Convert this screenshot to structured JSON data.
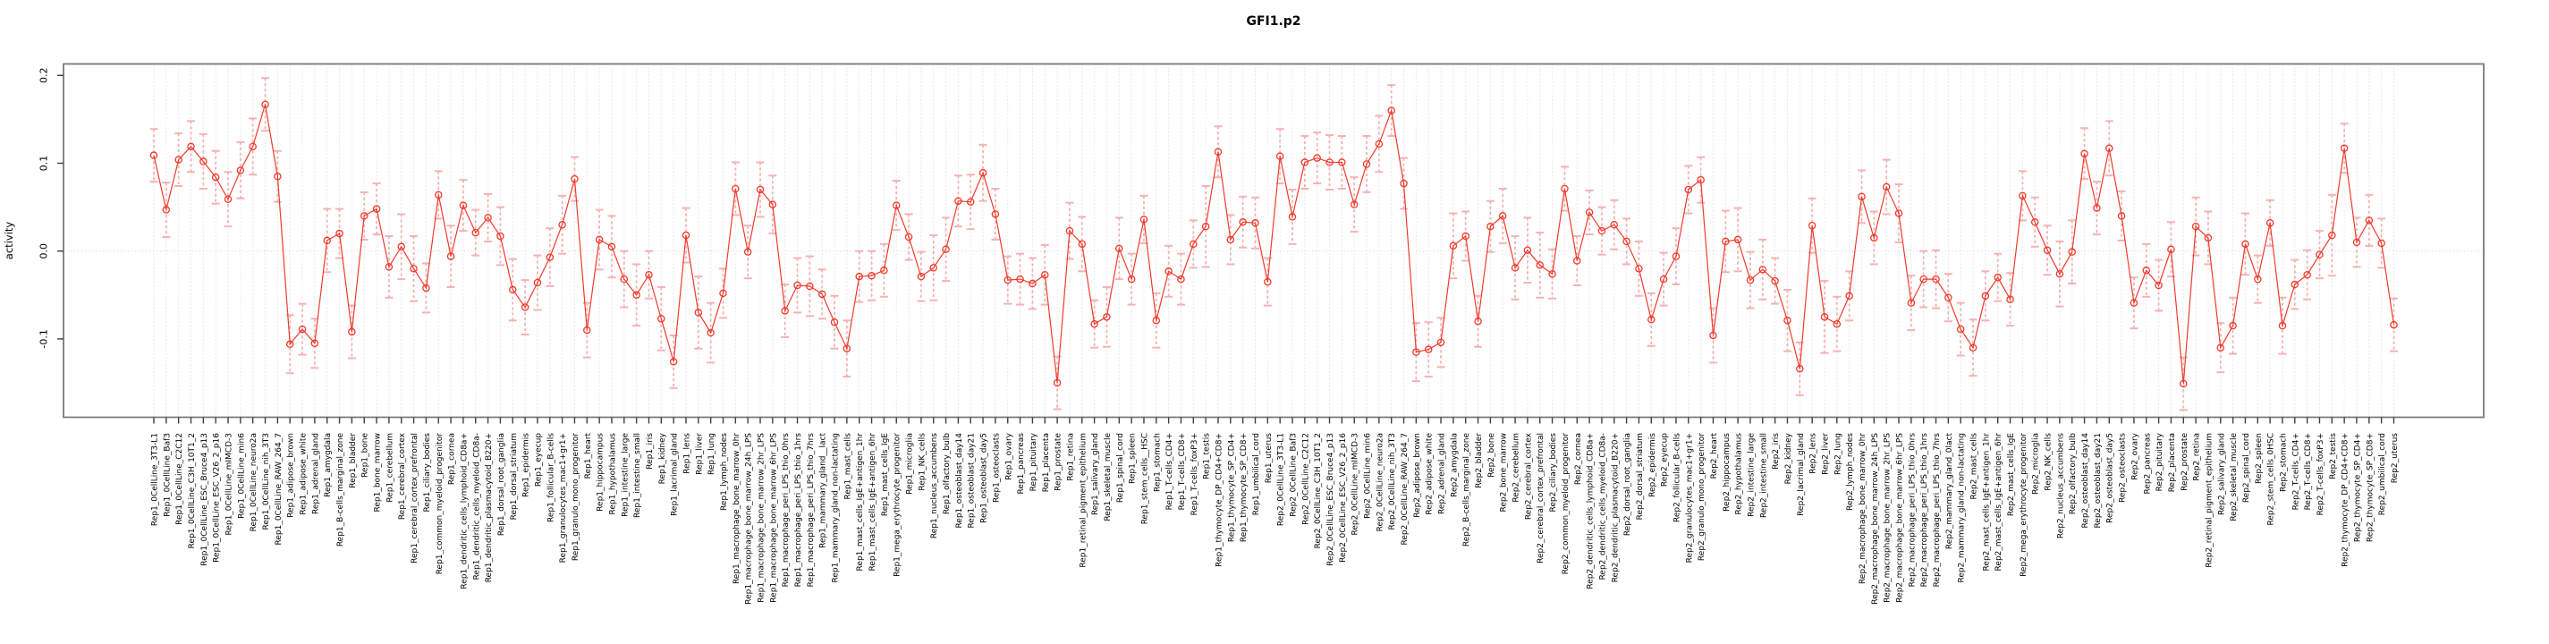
{
  "chart_data": {
    "type": "line",
    "title": "GFI1.p2",
    "xlabel": "",
    "ylabel": "activity",
    "ylim": [
      -0.189,
      0.213
    ],
    "yticks": [
      0.2,
      0.1,
      0.0,
      -0.1
    ],
    "ytick_labels": [
      "0.2",
      "0.1",
      "0.0",
      "-0.1"
    ],
    "grid": "vertical dotted at every category, dotted line at y=0",
    "legend_position": "none",
    "series_name": "activity with error bars",
    "colors": {
      "line": "#ef3b2c",
      "point_stroke": "#ef3b2c",
      "error_bar": "#f59f9f",
      "grid": "#d6d6d6",
      "box": "#7a7a7a",
      "tick": "#3f3f3f",
      "text": "#000000"
    },
    "categories": [
      "Rep1_0CellLine_3T3-L1",
      "Rep1_0CellLine_Baf3",
      "Rep1_0CellLine_C2C12",
      "Rep1_0CellLine_C3H_10T1_2",
      "Rep1_0CellLine_ESC_Bruce4_p13",
      "Rep1_0CellLine_ESC_V26_2_p16",
      "Rep1_0CellLine_mIMCD-3",
      "Rep1_0CellLine_min6",
      "Rep1_0CellLine_neuro2a",
      "Rep1_0CellLine_nih_3T3",
      "Rep1_0CellLine_RAW_264_7",
      "Rep1_adipose_brown",
      "Rep1_adipose_white",
      "Rep1_adrenal_gland",
      "Rep1_amygdala",
      "Rep1_B-cells_marginal_zone",
      "Rep1_bladder",
      "Rep1_bone",
      "Rep1_bone_marrow",
      "Rep1_cerebellum",
      "Rep1_cerebral_cortex",
      "Rep1_cerebral_cortex_prefrontal",
      "Rep1_ciliary_bodies",
      "Rep1_common_myeloid_progenitor",
      "Rep1_cornea",
      "Rep1_dendritic_cells_lymphoid_CD8a+",
      "Rep1_dendritic_cells_myeloid_CD8a-",
      "Rep1_dendritic_plasmacytoid_B220+",
      "Rep1_dorsal_root_ganglia",
      "Rep1_dorsal_striatum",
      "Rep1_epidermis",
      "Rep1_eyecup",
      "Rep1_follicular_B-cells",
      "Rep1_granulocytes_mac1+gr1+",
      "Rep1_granulo_mono_progenitor",
      "Rep1_heart",
      "Rep1_hippocampus",
      "Rep1_hypothalamus",
      "Rep1_intestine_large",
      "Rep1_intestine_small",
      "Rep1_iris",
      "Rep1_kidney",
      "Rep1_lacrimal_gland",
      "Rep1_lens",
      "Rep1_liver",
      "Rep1_lung",
      "Rep1_lymph_nodes",
      "Rep1_macrophage_bone_marrow_0hr",
      "Rep1_macrophage_bone_marrow_24h_LPS",
      "Rep1_macrophage_bone_marrow_2hr_LPS",
      "Rep1_macrophage_bone_marrow_6hr_LPS",
      "Rep1_macrophage_peri_LPS_thio_0hrs",
      "Rep1_macrophage_peri_LPS_thio_1hrs",
      "Rep1_macrophage_peri_LPS_thio_7hrs",
      "Rep1_mammary_gland__lact",
      "Rep1_mammary_gland_non-lactating",
      "Rep1_mast_cells",
      "Rep1_mast_cells_IgE+antigen_1hr",
      "Rep1_mast_cells_IgE+antigen_6hr",
      "Rep1_mast_cells_IgE",
      "Rep1_mega_erythrocyte_progenitor",
      "Rep1_microglia",
      "Rep1_NK_cells",
      "Rep1_nucleus_accumbens",
      "Rep1_olfactory_bulb",
      "Rep1_osteoblast_day14",
      "Rep1_osteoblast_day21",
      "Rep1_osteoblast_day5",
      "Rep1_osteoclasts",
      "Rep1_ovary",
      "Rep1_pancreas",
      "Rep1_pituitary",
      "Rep1_placenta",
      "Rep1_prostate",
      "Rep1_retina",
      "Rep1_retinal_pigment_epithelium",
      "Rep1_salivary_gland",
      "Rep1_skeletal_muscle",
      "Rep1_spinal_cord",
      "Rep1_spleen",
      "Rep1_stem_cells__HSC",
      "Rep1_stomach",
      "Rep1_T-cells_CD4+",
      "Rep1_T-cells_CD8+",
      "Rep1_T-cells_foxP3+",
      "Rep1_testis",
      "Rep1_thymocyte_DP_CD4+CD8+",
      "Rep1_thymocyte_SP_CD4+",
      "Rep1_thymocyte_SP_CD8+",
      "Rep1_umbilical_cord",
      "Rep1_uterus",
      "Rep2_0CellLine_3T3-L1",
      "Rep2_0CellLine_Baf3",
      "Rep2_0CellLine_C2C12",
      "Rep2_0CellLine_C3H_10T1_2",
      "Rep2_0CellLine_ESC_Bruce4_p13",
      "Rep2_0CellLine_ESC_V26_2_p16",
      "Rep2_0CellLine_mIMCD-3",
      "Rep2_0CellLine_min6",
      "Rep2_0CellLine_neuro2a",
      "Rep2_0CellLine_nih_3T3",
      "Rep2_0CellLine_RAW_264_7",
      "Rep2_adipose_brown",
      "Rep2_adipose_white",
      "Rep2_adrenal_gland",
      "Rep2_amygdala",
      "Rep2_B-cells_marginal_zone",
      "Rep2_bladder",
      "Rep2_bone",
      "Rep2_bone_marrow",
      "Rep2_cerebellum",
      "Rep2_cerebral_cortex",
      "Rep2_cerebral_cortex_prefrontal",
      "Rep2_ciliary_bodies",
      "Rep2_common_myeloid_progenitor",
      "Rep2_cornea",
      "Rep2_dendritic_cells_lymphoid_CD8a+",
      "Rep2_dendritic_cells_myeloid_CD8a-",
      "Rep2_dendritic_plasmacytoid_B220+",
      "Rep2_dorsal_root_ganglia",
      "Rep2_dorsal_striatum",
      "Rep2_epidermis",
      "Rep2_eyecup",
      "Rep2_follicular_B-cells",
      "Rep2_granulocytes_mac1+gr1+",
      "Rep2_granulo_mono_progenitor",
      "Rep2_heart",
      "Rep2_hippocampus",
      "Rep2_hypothalamus",
      "Rep2_intestine_large",
      "Rep2_intestine_small",
      "Rep2_iris",
      "Rep2_kidney",
      "Rep2_lacrimal_gland",
      "Rep2_lens",
      "Rep2_liver",
      "Rep2_lung",
      "Rep2_lymph_nodes",
      "Rep2_macrophage_bone_marrow_0hr",
      "Rep2_macrophage_bone_marrow_24h_LPS",
      "Rep2_macrophage_bone_marrow_2hr_LPS",
      "Rep2_macrophage_bone_marrow_6hr_LPS",
      "Rep2_macrophage_peri_LPS_thio_0hrs",
      "Rep2_macrophage_peri_LPS_thio_1hrs",
      "Rep2_macrophage_peri_LPS_thio_7hrs",
      "Rep2_mammary_gland_0lact",
      "Rep2_mammary_gland_non-lactating",
      "Rep2_mast_cells",
      "Rep2_mast_cells_IgE+antigen_1hr",
      "Rep2_mast_cells_IgE+antigen_6hr",
      "Rep2_mast_cells_IgE",
      "Rep2_mega_erythrocyte_progenitor",
      "Rep2_microglia",
      "Rep2_NK_cells",
      "Rep2_nucleus_accumbens",
      "Rep2_olfactory_bulb",
      "Rep2_osteoblast_day14",
      "Rep2_osteoblast_day21",
      "Rep2_osteoblast_day5",
      "Rep2_osteoclasts",
      "Rep2_ovary",
      "Rep2_pancreas",
      "Rep2_pituitary",
      "Rep2_placenta",
      "Rep2_prostate",
      "Rep2_retina",
      "Rep2_retinal_pigment_epithelium",
      "Rep2_salivary_gland",
      "Rep2_skeletal_muscle",
      "Rep2_spinal_cord",
      "Rep2_spleen",
      "Rep2_stem_cells_0HSC",
      "Rep2_stomach",
      "Rep2_T-cells_CD4+",
      "Rep2_T-cells_CD8+",
      "Rep2_T-cells_foxP3+",
      "Rep2_testis",
      "Rep2_thymocyte_DP_CD4+CD8+",
      "Rep2_thymocyte_SP_CD4+",
      "Rep2_thymocyte_SP_CD8+",
      "Rep2_umbilical_cord",
      "Rep2_uterus"
    ],
    "values": [
      0.109,
      0.047,
      0.104,
      0.119,
      0.102,
      0.084,
      0.059,
      0.092,
      0.119,
      0.167,
      0.085,
      -0.106,
      -0.089,
      -0.105,
      0.012,
      0.02,
      -0.092,
      0.04,
      0.048,
      -0.018,
      0.005,
      -0.02,
      -0.042,
      0.064,
      -0.006,
      0.052,
      0.021,
      0.038,
      0.017,
      -0.044,
      -0.064,
      -0.036,
      -0.007,
      0.03,
      0.082,
      -0.09,
      0.013,
      0.005,
      -0.032,
      -0.05,
      -0.027,
      -0.077,
      -0.126,
      0.018,
      -0.07,
      -0.093,
      -0.048,
      0.071,
      -0.001,
      0.07,
      0.053,
      -0.068,
      -0.039,
      -0.04,
      -0.049,
      -0.081,
      -0.111,
      -0.029,
      -0.028,
      -0.022,
      0.052,
      0.016,
      -0.029,
      -0.019,
      0.002,
      0.057,
      0.056,
      0.089,
      0.042,
      -0.033,
      -0.032,
      -0.037,
      -0.027,
      -0.15,
      0.023,
      0.008,
      -0.083,
      -0.075,
      0.003,
      -0.032,
      0.036,
      -0.079,
      -0.023,
      -0.032,
      0.008,
      0.028,
      0.113,
      0.013,
      0.033,
      0.032,
      -0.035,
      0.108,
      0.039,
      0.101,
      0.106,
      0.101,
      0.101,
      0.053,
      0.099,
      0.122,
      0.16,
      0.077,
      -0.115,
      -0.112,
      -0.104,
      0.006,
      0.017,
      -0.08,
      0.028,
      0.04,
      -0.019,
      0.001,
      -0.016,
      -0.026,
      0.071,
      -0.011,
      0.044,
      0.023,
      0.03,
      0.011,
      -0.02,
      -0.078,
      -0.032,
      -0.006,
      0.07,
      0.081,
      -0.096,
      0.011,
      0.013,
      -0.033,
      -0.021,
      -0.034,
      -0.079,
      -0.134,
      0.029,
      -0.075,
      -0.083,
      -0.051,
      0.062,
      0.015,
      0.073,
      0.043,
      -0.059,
      -0.032,
      -0.032,
      -0.053,
      -0.089,
      -0.11,
      -0.051,
      -0.03,
      -0.055,
      0.063,
      0.033,
      0.001,
      -0.026,
      -0.001,
      0.111,
      0.049,
      0.117,
      0.04,
      -0.059,
      -0.022,
      -0.039,
      0.002,
      -0.151,
      0.028,
      0.015,
      -0.11,
      -0.085,
      0.008,
      -0.032,
      0.032,
      -0.085,
      -0.038,
      -0.027,
      -0.004,
      0.018,
      0.117,
      0.01,
      0.035,
      0.009,
      -0.084
    ],
    "errors": [
      0.03,
      0.031,
      0.03,
      0.029,
      0.031,
      0.03,
      0.031,
      0.032,
      0.032,
      0.03,
      0.029,
      0.033,
      0.029,
      0.028,
      0.036,
      0.028,
      0.03,
      0.027,
      0.029,
      0.035,
      0.037,
      0.037,
      0.028,
      0.027,
      0.035,
      0.029,
      0.026,
      0.027,
      0.033,
      0.035,
      0.031,
      0.031,
      0.033,
      0.033,
      0.025,
      0.031,
      0.034,
      0.035,
      0.032,
      0.035,
      0.027,
      0.036,
      0.03,
      0.031,
      0.041,
      0.034,
      0.028,
      0.03,
      0.03,
      0.031,
      0.033,
      0.03,
      0.031,
      0.034,
      0.028,
      0.03,
      0.032,
      0.029,
      0.028,
      0.03,
      0.028,
      0.026,
      0.028,
      0.037,
      0.036,
      0.029,
      0.031,
      0.032,
      0.029,
      0.027,
      0.029,
      0.029,
      0.034,
      0.03,
      0.032,
      0.031,
      0.027,
      0.034,
      0.035,
      0.029,
      0.027,
      0.031,
      0.029,
      0.029,
      0.027,
      0.046,
      0.029,
      0.028,
      0.029,
      0.029,
      0.027,
      0.031,
      0.031,
      0.03,
      0.029,
      0.031,
      0.03,
      0.031,
      0.032,
      0.032,
      0.029,
      0.029,
      0.033,
      0.031,
      0.028,
      0.037,
      0.028,
      0.029,
      0.029,
      0.031,
      0.036,
      0.037,
      0.037,
      0.028,
      0.025,
      0.028,
      0.025,
      0.027,
      0.028,
      0.026,
      0.031,
      0.03,
      0.03,
      0.032,
      0.027,
      0.026,
      0.031,
      0.035,
      0.036,
      0.032,
      0.034,
      0.026,
      0.035,
      0.03,
      0.031,
      0.041,
      0.031,
      0.028,
      0.03,
      0.03,
      0.031,
      0.033,
      0.031,
      0.032,
      0.033,
      0.027,
      0.03,
      0.032,
      0.028,
      0.027,
      0.03,
      0.028,
      0.028,
      0.028,
      0.037,
      0.036,
      0.029,
      0.03,
      0.031,
      0.028,
      0.029,
      0.03,
      0.029,
      0.031,
      0.03,
      0.033,
      0.03,
      0.028,
      0.032,
      0.035,
      0.027,
      0.026,
      0.032,
      0.028,
      0.028,
      0.027,
      0.046,
      0.028,
      0.028,
      0.029,
      0.028,
      0.03
    ]
  }
}
